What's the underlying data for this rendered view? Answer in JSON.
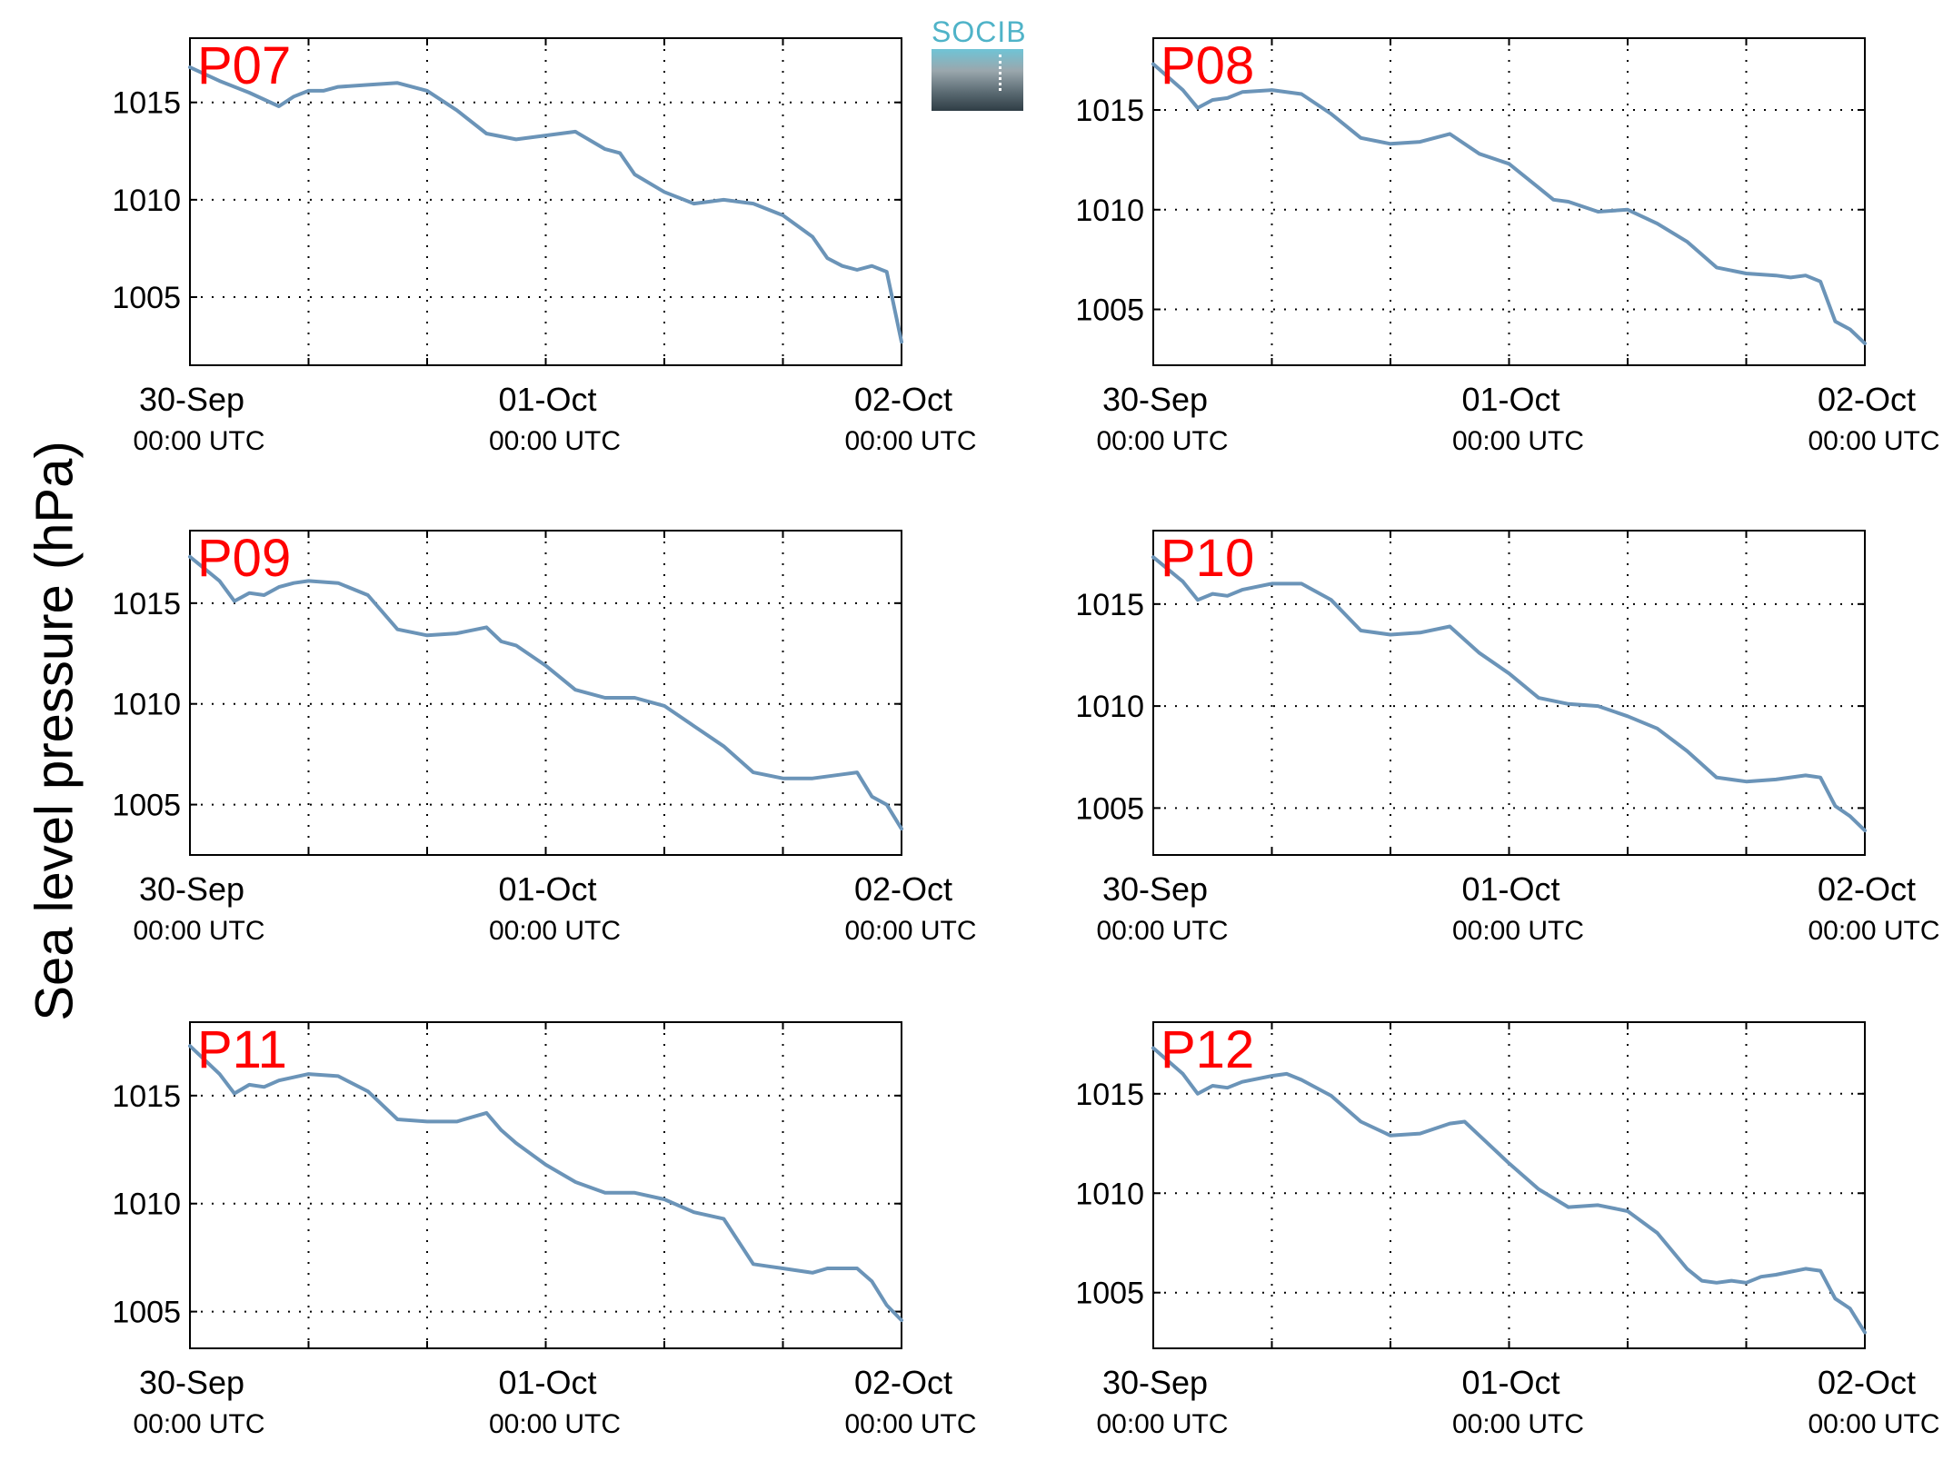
{
  "figure": {
    "ylabel": "Sea level pressure (hPa)",
    "logo_text": "SOCIB",
    "colors": {
      "line": "#6b94b8",
      "panel_label": "#ff0000",
      "grid": "#000000",
      "axis": "#000000"
    }
  },
  "chart_data": [
    {
      "type": "line",
      "title": "P07",
      "xlabel": "",
      "ylabel": "",
      "x_range": [
        "2019-09-30T00:00",
        "2019-10-02T00:00"
      ],
      "x_unit": "hours since 30-Sep 00:00 UTC",
      "x_ticks": [
        {
          "label": "30-Sep",
          "sublabel": "00:00 UTC"
        },
        {
          "label": "01-Oct",
          "sublabel": "00:00 UTC"
        },
        {
          "label": "02-Oct",
          "sublabel": "00:00 UTC"
        }
      ],
      "yticks": [
        1005,
        1010,
        1015
      ],
      "ylim": [
        1001.5,
        1018.3
      ],
      "grid": true,
      "series": [
        {
          "x": [
            0,
            2,
            4,
            6,
            7,
            8,
            9,
            10,
            12,
            14,
            16,
            18,
            20,
            22,
            24,
            26,
            28,
            29,
            30,
            32,
            34,
            36,
            38,
            40,
            42,
            43,
            44,
            45,
            46,
            47,
            48
          ],
          "y": [
            1016.8,
            1016.1,
            1015.5,
            1014.8,
            1015.3,
            1015.6,
            1015.6,
            1015.8,
            1015.9,
            1016.0,
            1015.6,
            1014.6,
            1013.4,
            1013.1,
            1013.3,
            1013.5,
            1012.6,
            1012.4,
            1011.3,
            1010.4,
            1009.8,
            1010.0,
            1009.8,
            1009.2,
            1008.1,
            1007.0,
            1006.6,
            1006.4,
            1006.6,
            1006.3,
            1002.7
          ]
        }
      ]
    },
    {
      "type": "line",
      "title": "P08",
      "xlabel": "",
      "ylabel": "",
      "x_range": [
        "2019-09-30T00:00",
        "2019-10-02T00:00"
      ],
      "x_unit": "hours since 30-Sep 00:00 UTC",
      "x_ticks": [
        {
          "label": "30-Sep",
          "sublabel": "00:00 UTC"
        },
        {
          "label": "01-Oct",
          "sublabel": "00:00 UTC"
        },
        {
          "label": "02-Oct",
          "sublabel": "00:00 UTC"
        }
      ],
      "yticks": [
        1005,
        1010,
        1015
      ],
      "ylim": [
        1002.2,
        1018.6
      ],
      "grid": true,
      "series": [
        {
          "x": [
            0,
            2,
            3,
            4,
            5,
            6,
            8,
            10,
            12,
            14,
            16,
            18,
            20,
            22,
            24,
            26,
            27,
            28,
            30,
            32,
            34,
            36,
            38,
            40,
            42,
            43,
            44,
            45,
            46,
            47,
            48
          ],
          "y": [
            1017.3,
            1016.0,
            1015.1,
            1015.5,
            1015.6,
            1015.9,
            1016.0,
            1015.8,
            1014.8,
            1013.6,
            1013.3,
            1013.4,
            1013.8,
            1012.8,
            1012.3,
            1011.1,
            1010.5,
            1010.4,
            1009.9,
            1010.0,
            1009.3,
            1008.4,
            1007.1,
            1006.8,
            1006.7,
            1006.6,
            1006.7,
            1006.4,
            1004.4,
            1004.0,
            1003.3
          ]
        }
      ]
    },
    {
      "type": "line",
      "title": "P09",
      "xlabel": "",
      "ylabel": "",
      "x_range": [
        "2019-09-30T00:00",
        "2019-10-02T00:00"
      ],
      "x_unit": "hours since 30-Sep 00:00 UTC",
      "x_ticks": [
        {
          "label": "30-Sep",
          "sublabel": "00:00 UTC"
        },
        {
          "label": "01-Oct",
          "sublabel": "00:00 UTC"
        },
        {
          "label": "02-Oct",
          "sublabel": "00:00 UTC"
        }
      ],
      "yticks": [
        1005,
        1010,
        1015
      ],
      "ylim": [
        1002.5,
        1018.6
      ],
      "grid": true,
      "series": [
        {
          "x": [
            0,
            2,
            3,
            4,
            5,
            6,
            7,
            8,
            10,
            12,
            14,
            16,
            18,
            20,
            21,
            22,
            24,
            26,
            28,
            30,
            32,
            34,
            36,
            38,
            40,
            42,
            44,
            45,
            46,
            47,
            48
          ],
          "y": [
            1017.3,
            1016.1,
            1015.1,
            1015.5,
            1015.4,
            1015.8,
            1016.0,
            1016.1,
            1016.0,
            1015.4,
            1013.7,
            1013.4,
            1013.5,
            1013.8,
            1013.1,
            1012.9,
            1011.9,
            1010.7,
            1010.3,
            1010.3,
            1009.9,
            1008.9,
            1007.9,
            1006.6,
            1006.3,
            1006.3,
            1006.5,
            1006.6,
            1005.4,
            1005.0,
            1003.8
          ]
        }
      ]
    },
    {
      "type": "line",
      "title": "P10",
      "xlabel": "",
      "ylabel": "",
      "x_range": [
        "2019-09-30T00:00",
        "2019-10-02T00:00"
      ],
      "x_unit": "hours since 30-Sep 00:00 UTC",
      "x_ticks": [
        {
          "label": "30-Sep",
          "sublabel": "00:00 UTC"
        },
        {
          "label": "01-Oct",
          "sublabel": "00:00 UTC"
        },
        {
          "label": "02-Oct",
          "sublabel": "00:00 UTC"
        }
      ],
      "yticks": [
        1005,
        1010,
        1015
      ],
      "ylim": [
        1002.7,
        1018.6
      ],
      "grid": true,
      "series": [
        {
          "x": [
            0,
            2,
            3,
            4,
            5,
            6,
            8,
            10,
            12,
            14,
            16,
            18,
            20,
            22,
            24,
            26,
            28,
            30,
            32,
            34,
            36,
            38,
            40,
            42,
            44,
            45,
            46,
            47,
            48
          ],
          "y": [
            1017.3,
            1016.1,
            1015.2,
            1015.5,
            1015.4,
            1015.7,
            1016.0,
            1016.0,
            1015.2,
            1013.7,
            1013.5,
            1013.6,
            1013.9,
            1012.6,
            1011.6,
            1010.4,
            1010.1,
            1010.0,
            1009.5,
            1008.9,
            1007.8,
            1006.5,
            1006.3,
            1006.4,
            1006.6,
            1006.5,
            1005.1,
            1004.6,
            1003.9
          ]
        }
      ]
    },
    {
      "type": "line",
      "title": "P11",
      "xlabel": "",
      "ylabel": "",
      "x_range": [
        "2019-09-30T00:00",
        "2019-10-02T00:00"
      ],
      "x_unit": "hours since 30-Sep 00:00 UTC",
      "x_ticks": [
        {
          "label": "30-Sep",
          "sublabel": "00:00 UTC"
        },
        {
          "label": "01-Oct",
          "sublabel": "00:00 UTC"
        },
        {
          "label": "02-Oct",
          "sublabel": "00:00 UTC"
        }
      ],
      "yticks": [
        1005,
        1010,
        1015
      ],
      "ylim": [
        1003.3,
        1018.4
      ],
      "grid": true,
      "series": [
        {
          "x": [
            0,
            2,
            3,
            4,
            5,
            6,
            8,
            10,
            12,
            14,
            16,
            18,
            20,
            21,
            22,
            24,
            26,
            28,
            30,
            32,
            34,
            36,
            38,
            39,
            40,
            42,
            43,
            44,
            45,
            46,
            47,
            48
          ],
          "y": [
            1017.3,
            1016.0,
            1015.1,
            1015.5,
            1015.4,
            1015.7,
            1016.0,
            1015.9,
            1015.2,
            1013.9,
            1013.8,
            1013.8,
            1014.2,
            1013.4,
            1012.8,
            1011.8,
            1011.0,
            1010.5,
            1010.5,
            1010.2,
            1009.6,
            1009.3,
            1007.2,
            1007.1,
            1007.0,
            1006.8,
            1007.0,
            1007.0,
            1007.0,
            1006.4,
            1005.3,
            1004.6
          ]
        }
      ]
    },
    {
      "type": "line",
      "title": "P12",
      "xlabel": "",
      "ylabel": "",
      "x_range": [
        "2019-09-30T00:00",
        "2019-10-02T00:00"
      ],
      "x_unit": "hours since 30-Sep 00:00 UTC",
      "x_ticks": [
        {
          "label": "30-Sep",
          "sublabel": "00:00 UTC"
        },
        {
          "label": "01-Oct",
          "sublabel": "00:00 UTC"
        },
        {
          "label": "02-Oct",
          "sublabel": "00:00 UTC"
        }
      ],
      "yticks": [
        1005,
        1010,
        1015
      ],
      "ylim": [
        1002.2,
        1018.6
      ],
      "grid": true,
      "series": [
        {
          "x": [
            0,
            2,
            3,
            4,
            5,
            6,
            8,
            9,
            10,
            12,
            14,
            16,
            18,
            20,
            21,
            22,
            24,
            26,
            28,
            30,
            32,
            34,
            36,
            37,
            38,
            39,
            40,
            41,
            42,
            44,
            45,
            46,
            47,
            48
          ],
          "y": [
            1017.3,
            1016.0,
            1015.0,
            1015.4,
            1015.3,
            1015.6,
            1015.9,
            1016.0,
            1015.7,
            1014.9,
            1013.6,
            1012.9,
            1013.0,
            1013.5,
            1013.6,
            1012.9,
            1011.5,
            1010.2,
            1009.3,
            1009.4,
            1009.1,
            1008.0,
            1006.2,
            1005.6,
            1005.5,
            1005.6,
            1005.5,
            1005.8,
            1005.9,
            1006.2,
            1006.1,
            1004.7,
            1004.2,
            1003.0
          ]
        }
      ]
    }
  ]
}
